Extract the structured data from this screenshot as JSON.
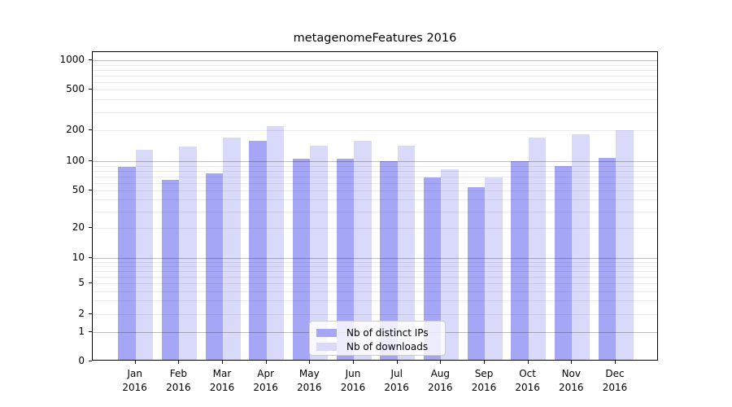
{
  "figure": {
    "title": "metagenomeFeatures 2016"
  },
  "chart_data": {
    "type": "bar",
    "title": "metagenomeFeatures 2016",
    "categories": [
      "Jan",
      "Feb",
      "Mar",
      "Apr",
      "May",
      "Jun",
      "Jul",
      "Aug",
      "Sep",
      "Oct",
      "Nov",
      "Dec"
    ],
    "x_tick_year": "2016",
    "series": [
      {
        "name": "Nb of distinct IPs",
        "color": "#a6a6f7",
        "values": [
          84,
          62,
          72,
          153,
          101,
          101,
          97,
          65,
          52,
          96,
          85,
          104
        ]
      },
      {
        "name": "Nb of downloads",
        "color": "#d9d9f9",
        "values": [
          124,
          133,
          164,
          213,
          137,
          152,
          136,
          80,
          66,
          164,
          176,
          193
        ]
      }
    ],
    "xlabel": "",
    "ylabel": "",
    "yscale": "symlog",
    "y_ticks": [
      0,
      1,
      2,
      5,
      10,
      20,
      50,
      100,
      200,
      500,
      1000
    ],
    "y_minor_ticks": [
      3,
      4,
      6,
      7,
      8,
      9,
      30,
      40,
      60,
      70,
      80,
      90,
      300,
      400,
      600,
      700,
      800,
      900
    ],
    "ylim": [
      0,
      1400
    ],
    "grid": true,
    "grid_above_bars": true,
    "legend_position": "lower center"
  },
  "colors": {
    "bar_distinct_ips": "#a6a6f7",
    "bar_downloads": "#d9d9f9",
    "grid_major": "rgba(0,0,0,0.26)",
    "grid_minor": "rgba(0,0,0,0.08)",
    "axis": "#000000",
    "legend_border": "#cccccc"
  }
}
